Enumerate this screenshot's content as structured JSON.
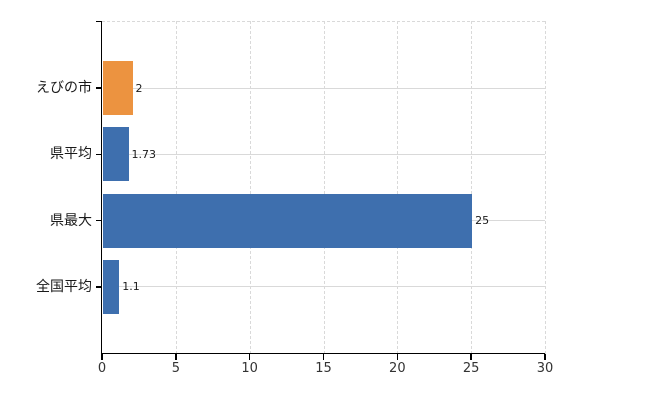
{
  "chart_data": {
    "type": "bar",
    "orientation": "horizontal",
    "title": "",
    "xlabel": "",
    "ylabel": "",
    "categories": [
      "えびの市",
      "県平均",
      "県最大",
      "全国平均"
    ],
    "values": [
      2,
      1.73,
      25,
      1.1
    ],
    "value_labels": [
      "2",
      "1.73",
      "25",
      "1.1"
    ],
    "bar_colors": [
      "#EC9340",
      "#3E6FAE",
      "#3E6FAE",
      "#3E6FAE"
    ],
    "xlim": [
      0,
      30
    ],
    "x_ticks": [
      0,
      5,
      10,
      15,
      20,
      25,
      30
    ],
    "x_tick_labels": [
      "0",
      "5",
      "10",
      "15",
      "20",
      "25",
      "30"
    ],
    "grid": true,
    "legend": "none",
    "colors": {
      "axis": "#000000",
      "gridline": "#D9D9D9",
      "category_label": "#1a1a1a",
      "x_tick_label": "#333333",
      "value_label": "#1a1a1a",
      "background": "#FFFFFF"
    }
  }
}
